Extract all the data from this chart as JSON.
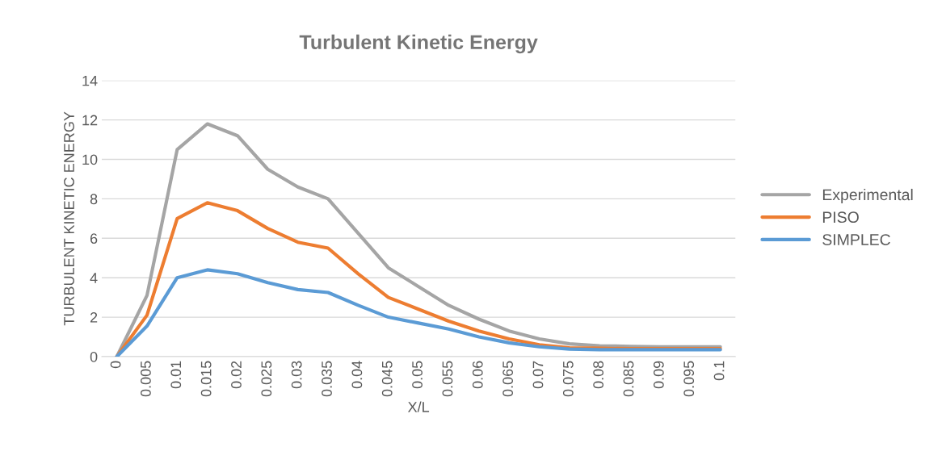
{
  "chart_data": {
    "type": "line",
    "title": "Turbulent Kinetic Energy",
    "xlabel": "X/L",
    "ylabel": "TURBULENT KINETIC ENERGY",
    "categories": [
      "0",
      "0.005",
      "0.01",
      "0.015",
      "0.02",
      "0.025",
      "0.03",
      "0.035",
      "0.04",
      "0.045",
      "0.05",
      "0.055",
      "0.06",
      "0.065",
      "0.07",
      "0.075",
      "0.08",
      "0.085",
      "0.09",
      "0.095",
      "0.1"
    ],
    "series": [
      {
        "name": "Experimental",
        "color": "#a5a5a5",
        "values": [
          0,
          3.1,
          10.5,
          11.8,
          11.2,
          9.5,
          8.6,
          8.0,
          6.25,
          4.5,
          3.55,
          2.6,
          1.9,
          1.3,
          0.9,
          0.65,
          0.55,
          0.52,
          0.5,
          0.5,
          0.5
        ]
      },
      {
        "name": "PISO",
        "color": "#ed7d31",
        "values": [
          0,
          2.1,
          7.0,
          7.8,
          7.4,
          6.5,
          5.8,
          5.5,
          4.2,
          3.0,
          2.4,
          1.8,
          1.3,
          0.9,
          0.6,
          0.45,
          0.42,
          0.4,
          0.4,
          0.4,
          0.4
        ]
      },
      {
        "name": "SIMPLEC",
        "color": "#5b9bd5",
        "values": [
          0,
          1.55,
          4.0,
          4.4,
          4.2,
          3.75,
          3.4,
          3.25,
          2.6,
          2.0,
          1.7,
          1.4,
          1.0,
          0.7,
          0.5,
          0.38,
          0.35,
          0.35,
          0.35,
          0.35,
          0.35
        ]
      }
    ],
    "ylim": [
      0,
      14
    ],
    "yticks": [
      0,
      2,
      4,
      6,
      8,
      10,
      12,
      14
    ],
    "grid": "y",
    "legend": "right",
    "marker": "none",
    "line_style": "solid"
  }
}
